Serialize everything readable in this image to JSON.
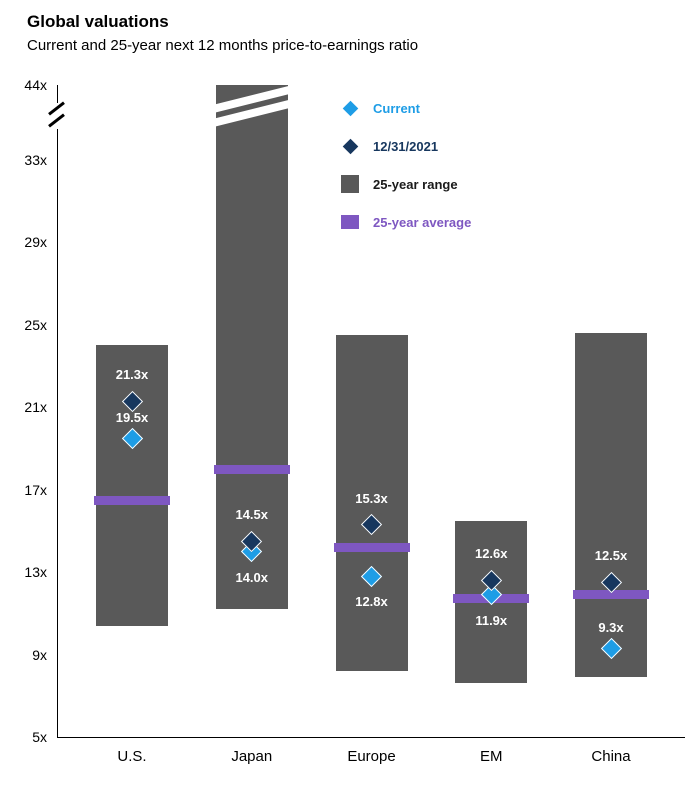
{
  "header": {
    "title": "Global valuations",
    "subtitle": "Current and 25-year next 12 months price-to-earnings ratio"
  },
  "chart_data": {
    "type": "range-bar",
    "title": "Global valuations",
    "subtitle": "Current and 25-year next 12 months price-to-earnings ratio",
    "y_axis": {
      "unit": "x",
      "ticks": [
        44,
        33,
        29,
        25,
        21,
        17,
        13,
        9,
        5
      ],
      "min": 5,
      "max": 44,
      "break_between": [
        33,
        44
      ]
    },
    "categories": [
      "U.S.",
      "Japan",
      "Europe",
      "EM",
      "China"
    ],
    "legend": [
      {
        "label": "Current",
        "swatch": "diamond",
        "color": "#1e9de6",
        "text_color": "#1e9de6"
      },
      {
        "label": "12/31/2021",
        "swatch": "diamond",
        "color": "#17375e",
        "text_color": "#17375e"
      },
      {
        "label": "25-year range",
        "swatch": "square",
        "color": "#595959",
        "text_color": "#1a1a1a"
      },
      {
        "label": "25-year average",
        "swatch": "bar",
        "color": "#7e57c1",
        "text_color": "#7e57c1"
      }
    ],
    "series": [
      {
        "category": "U.S.",
        "range_low": 10.4,
        "range_high": 24.0,
        "clipped": false,
        "average": 16.5,
        "dec_2021": 21.3,
        "current": 19.5,
        "dec_label": "21.3x",
        "current_label": "19.5x",
        "current_label_pos": "above"
      },
      {
        "category": "Japan",
        "range_low": 11.2,
        "range_high": 44.0,
        "clipped": true,
        "average": 18.0,
        "dec_2021": 14.5,
        "current": 14.0,
        "dec_label": "14.5x",
        "current_label": "14.0x",
        "current_label_pos": "below"
      },
      {
        "category": "Europe",
        "range_low": 8.2,
        "range_high": 24.5,
        "clipped": false,
        "average": 14.2,
        "dec_2021": 15.3,
        "current": 12.8,
        "dec_label": "15.3x",
        "current_label": "12.8x",
        "current_label_pos": "below"
      },
      {
        "category": "EM",
        "range_low": 7.6,
        "range_high": 15.5,
        "clipped": false,
        "average": 11.7,
        "dec_2021": 12.6,
        "current": 11.9,
        "dec_label": "12.6x",
        "current_label": "11.9x",
        "current_label_pos": "below"
      },
      {
        "category": "China",
        "range_low": 7.9,
        "range_high": 24.6,
        "clipped": false,
        "average": 11.9,
        "dec_2021": 12.5,
        "current": 9.3,
        "dec_label": "12.5x",
        "current_label": "9.3x",
        "current_label_pos": "above"
      }
    ],
    "colors": {
      "range_bar": "#595959",
      "average_band": "#7e57c1",
      "current_marker": "#1e9de6",
      "dec_2021_marker": "#17375e"
    }
  }
}
